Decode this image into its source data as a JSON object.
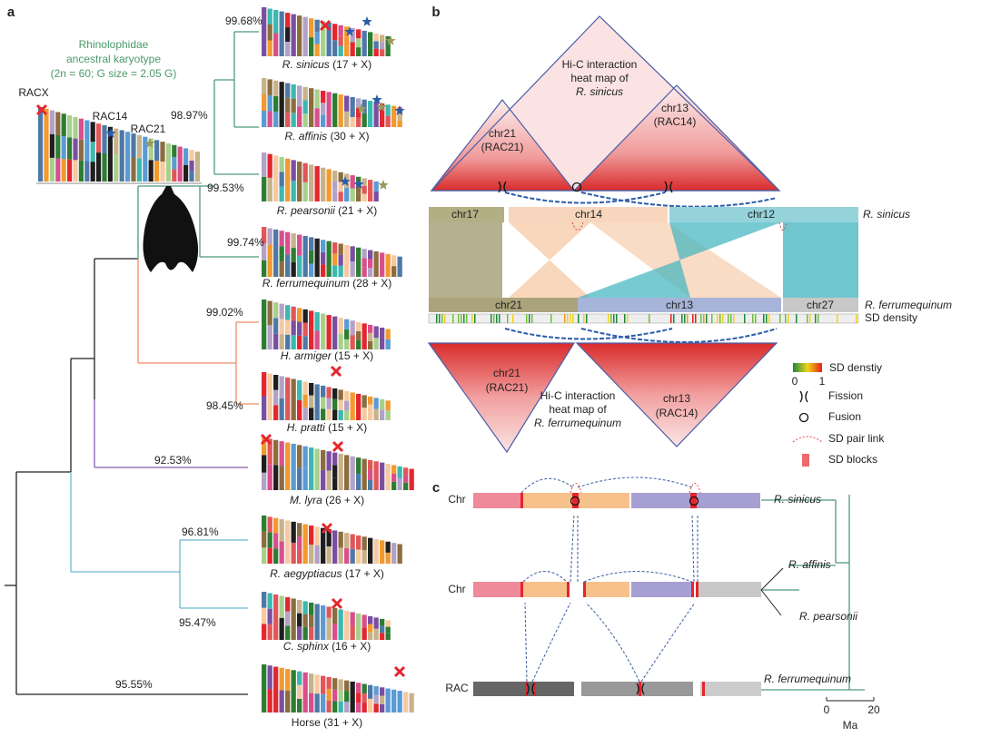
{
  "panel_a": {
    "label": "a",
    "title": [
      "Rhinolophidae",
      "ancestral karyotype",
      "(2n = 60; G size = 2.05 G)"
    ],
    "ancestral_labels": [
      "RACX",
      "RAC14",
      "RAC21"
    ],
    "species": [
      {
        "name": "R. sinicus",
        "karyotype": "(17 + X)",
        "identity": "99.68%"
      },
      {
        "name": "R. affinis",
        "karyotype": "(30 + X)",
        "identity": "98.97%"
      },
      {
        "name": "R. pearsonii",
        "karyotype": "(21 + X)",
        "identity": "99.53%"
      },
      {
        "name": "R. ferrumequinum",
        "karyotype": "(28 + X)",
        "identity": "99.74%"
      },
      {
        "name": "H. armiger",
        "karyotype": "(15 + X)",
        "identity": "99.02%"
      },
      {
        "name": "H. pratti",
        "karyotype": "(15 + X)",
        "identity": "98.45%"
      },
      {
        "name": "M. lyra",
        "karyotype": "(26 + X)",
        "identity": "92.53%"
      },
      {
        "name": "R. aegyptiacus",
        "karyotype": "(17 + X)",
        "identity": "96.81%"
      },
      {
        "name": "C. sphinx",
        "karyotype": "(16 + X)",
        "identity": "95.47%"
      },
      {
        "name": "Horse",
        "karyotype": "(31 + X)",
        "identity": "95.55%"
      }
    ]
  },
  "panel_b": {
    "label": "b",
    "top_heatmap": {
      "title": [
        "Hi-C interaction",
        "heat map of",
        "R. sinicus"
      ],
      "blocks": [
        {
          "chr": "chr21",
          "rac": "(RAC21)"
        },
        {
          "chr": "chr13",
          "rac": "(RAC14)"
        }
      ]
    },
    "top_track": {
      "species": "R. sinicus",
      "chromosomes": [
        "chr17",
        "chr14",
        "chr12"
      ]
    },
    "bottom_track": {
      "species": "R. ferrumequinum",
      "chromosomes": [
        "chr21",
        "chr13",
        "chr27"
      ]
    },
    "density_track": "SD density",
    "bottom_heatmap": {
      "title": [
        "Hi-C interaction",
        "heat map of",
        "R. ferrumequinum"
      ],
      "blocks": [
        {
          "chr": "chr21",
          "rac": "(RAC21)"
        },
        {
          "chr": "chr13",
          "rac": "(RAC14)"
        }
      ]
    },
    "legend": {
      "density": "SD denstiy",
      "density_min": "0",
      "density_max": "1",
      "fission": "Fission",
      "fusion": "Fusion",
      "pair_link": "SD pair link",
      "blocks": "SD blocks"
    }
  },
  "panel_c": {
    "label": "c",
    "rows": [
      "Chr",
      "Chr",
      "RAC"
    ],
    "species": [
      "R. sinicus",
      "R. affinis",
      "R. pearsonii",
      "R. ferrumequinum"
    ],
    "axis": {
      "ticks": [
        "0",
        "20"
      ],
      "unit": "Ma"
    }
  }
}
